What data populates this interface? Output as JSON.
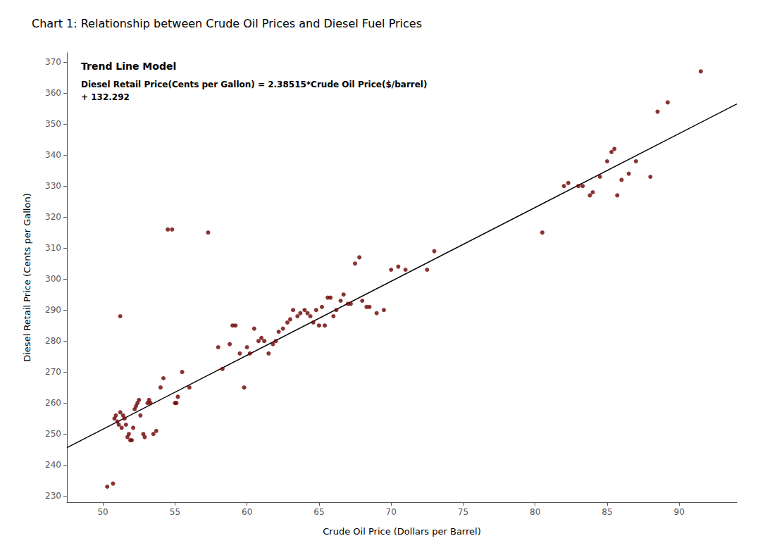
{
  "chart_data": {
    "type": "scatter",
    "title": "Chart 1: Relationship between Crude Oil Prices and Diesel Fuel Prices",
    "xlabel": "Crude Oil Price (Dollars per Barrel)",
    "ylabel": "Diesel Retail Price (Cents per Gallon)",
    "annotations": [
      "Trend Line Model",
      "Diesel Retail Price(Cents per Gallon) = 2.38515*Crude Oil Price($/barrel)",
      "+ 132.292"
    ],
    "xlim": [
      47.5,
      94
    ],
    "ylim": [
      228,
      373
    ],
    "xticks": [
      50,
      55,
      60,
      65,
      70,
      75,
      80,
      85,
      90
    ],
    "yticks": [
      230,
      240,
      250,
      260,
      270,
      280,
      290,
      300,
      310,
      320,
      330,
      340,
      350,
      360,
      370
    ],
    "grid": false,
    "series": [
      {
        "type": "scatter",
        "color": "#6b0000",
        "x": [
          50.3,
          50.7,
          50.8,
          50.9,
          51.0,
          51.1,
          51.2,
          51.3,
          51.4,
          51.5,
          51.6,
          51.7,
          51.8,
          51.9,
          52.0,
          52.1,
          52.2,
          52.3,
          52.4,
          52.5,
          52.6,
          52.8,
          52.9,
          53.1,
          53.2,
          53.3,
          53.5,
          53.7,
          54.0,
          54.2,
          54.5,
          54.8,
          55.0,
          55.1,
          55.2,
          55.5,
          56.0,
          57.3,
          58.0,
          58.3,
          58.8,
          59.0,
          59.2,
          59.5,
          59.8,
          60.0,
          60.2,
          60.5,
          60.8,
          61.0,
          61.2,
          61.5,
          61.8,
          62.0,
          62.2,
          62.5,
          62.8,
          63.0,
          63.2,
          63.5,
          63.7,
          64.0,
          64.2,
          64.4,
          64.6,
          64.8,
          65.0,
          65.2,
          65.4,
          65.6,
          65.8,
          66.0,
          66.2,
          66.5,
          66.7,
          67.0,
          67.2,
          67.5,
          67.8,
          68.0,
          68.3,
          68.5,
          69.0,
          69.5,
          70.0,
          70.5,
          71.0,
          72.5,
          73.0,
          51.2,
          80.5,
          82.0,
          82.3,
          83.0,
          83.3,
          83.8,
          84.0,
          84.5,
          85.0,
          85.3,
          85.5,
          85.7,
          86.0,
          86.5,
          87.0,
          88.0,
          88.5,
          89.2,
          91.5
        ],
        "values": [
          233,
          234,
          255,
          256,
          254,
          253,
          257,
          252,
          256,
          255,
          253,
          249,
          250,
          248,
          248,
          252,
          258,
          259,
          260,
          261,
          256,
          250,
          249,
          260,
          261,
          260,
          250,
          251,
          265,
          268,
          316,
          316,
          260,
          260,
          262,
          270,
          265,
          315,
          278,
          271,
          279,
          285,
          285,
          276,
          265,
          278,
          276,
          284,
          280,
          281,
          280,
          276,
          279,
          280,
          283,
          284,
          286,
          287,
          290,
          288,
          289,
          290,
          289,
          288,
          286,
          290,
          285,
          291,
          285,
          294,
          294,
          288,
          290,
          293,
          295,
          292,
          292,
          305,
          307,
          293,
          291,
          291,
          289,
          290,
          303,
          304,
          303,
          303,
          309,
          288,
          315,
          330,
          331,
          330,
          330,
          327,
          328,
          333,
          338,
          341,
          342,
          327,
          332,
          334,
          338,
          333,
          354,
          357,
          367
        ]
      },
      {
        "type": "line",
        "color": "#000000",
        "x": [
          47.5,
          94
        ],
        "values": [
          245.586625,
          356.4961
        ]
      }
    ]
  }
}
